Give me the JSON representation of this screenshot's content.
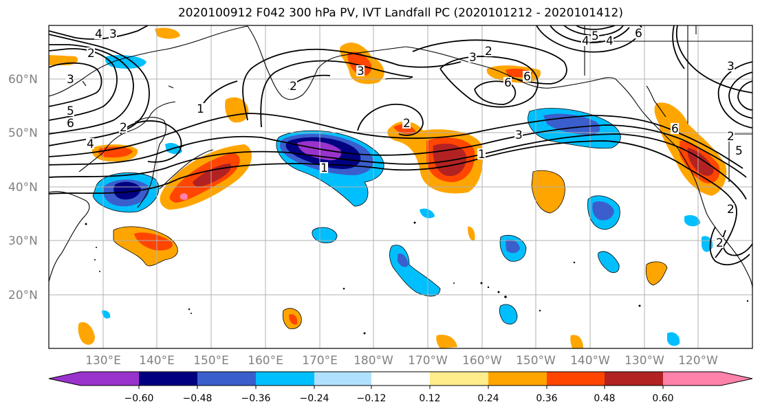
{
  "title": "2020100912 F042 300 hPa PV, IVT Landfall PC (2020101212 - 2020101412)",
  "lat_labels": [
    "60°N",
    "50°N",
    "40°N",
    "30°N",
    "20°N"
  ],
  "lon_labels": [
    "130°E",
    "140°E",
    "150°E",
    "160°E",
    "170°E",
    "180°W",
    "170°W",
    "160°W",
    "150°W",
    "140°W",
    "130°W",
    "120°W"
  ],
  "colorbar": {
    "colors": [
      "#9933cc",
      "#000080",
      "#3a5fcd",
      "#00bfff",
      "#b0e2ff",
      "#ffffff",
      "#ffec8b",
      "#ffa500",
      "#ff4500",
      "#b22222",
      "#ff82ab"
    ],
    "tick_labels": [
      "−0.60",
      "−0.48",
      "−0.36",
      "−0.24",
      "−0.12",
      "0.12",
      "0.24",
      "0.36",
      "0.48",
      "0.60"
    ]
  },
  "contour_labels": [
    "4",
    "3",
    "2",
    "3",
    "5",
    "6",
    "4",
    "2",
    "1",
    "2",
    "3",
    "1",
    "2",
    "1",
    "6",
    "6",
    "3",
    "2",
    "4",
    "5",
    "6",
    "5",
    "2",
    "3",
    "2",
    "6",
    "2",
    "3",
    "4"
  ]
}
